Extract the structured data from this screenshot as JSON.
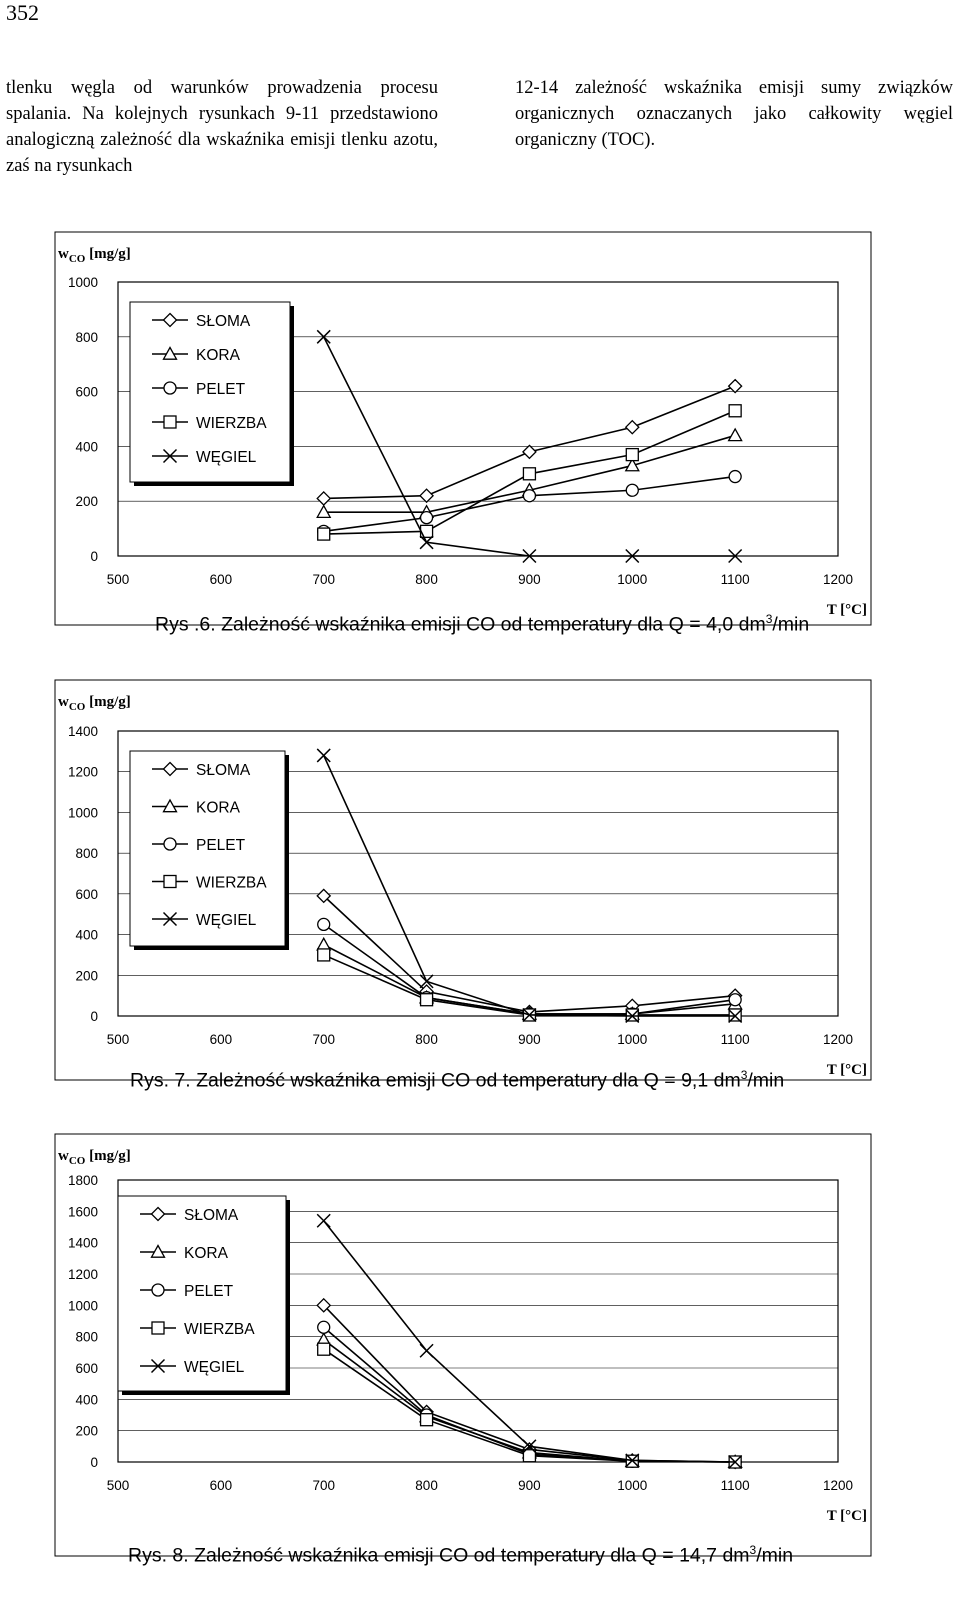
{
  "page": {
    "number": "352",
    "left_column_text": "tlenku węgla od warunków prowadzenia procesu spalania. Na kolejnych rysunkach 9-11 przedstawiono analogiczną zależność dla wskaźnika emisji tlenku azotu, zaś na rysunkach",
    "right_column_text": "12-14 zależność wskaźnika emisji sumy związków organicznych oznaczanych jako całkowity węgiel organiczny (TOC)."
  },
  "chart_data": [
    {
      "type": "line",
      "caption": "Rys .6. Zależność wskaźnika emisji CO od temperatury dla Q = 4,0 dm³/min",
      "ylabel": "w CO [mg/g]",
      "xlabel": "T [°C]",
      "xlim": [
        500,
        1200
      ],
      "ylim": [
        0,
        1000
      ],
      "xticks": [
        "500",
        "600",
        "700",
        "800",
        "900",
        "1000",
        "1100",
        "1200"
      ],
      "yticks": [
        "0",
        "200",
        "400",
        "600",
        "800",
        "1000"
      ],
      "legend_position": "top-left",
      "series": [
        {
          "name": "SŁOMA",
          "marker": "diamond",
          "x": [
            700,
            800,
            900,
            1000,
            1100
          ],
          "values": [
            210,
            220,
            380,
            470,
            620
          ]
        },
        {
          "name": "KORA",
          "marker": "triangle",
          "x": [
            700,
            800,
            900,
            1000,
            1100
          ],
          "values": [
            160,
            160,
            240,
            330,
            440
          ]
        },
        {
          "name": "PELET",
          "marker": "circle",
          "x": [
            700,
            800,
            900,
            1000,
            1100
          ],
          "values": [
            90,
            140,
            220,
            240,
            290
          ]
        },
        {
          "name": "WIERZBA",
          "marker": "square",
          "x": [
            700,
            800,
            900,
            1000,
            1100
          ],
          "values": [
            80,
            90,
            300,
            370,
            530
          ]
        },
        {
          "name": "WĘGIEL",
          "marker": "cross",
          "x": [
            700,
            800,
            900,
            1000,
            1100
          ],
          "values": [
            800,
            50,
            0,
            0,
            0
          ]
        }
      ]
    },
    {
      "type": "line",
      "caption": "Rys. 7. Zależność wskaźnika emisji CO od temperatury dla Q = 9,1 dm³/min",
      "ylabel": "w CO [mg/g]",
      "xlabel": "T [°C]",
      "xlim": [
        500,
        1200
      ],
      "ylim": [
        0,
        1400
      ],
      "xticks": [
        "500",
        "600",
        "700",
        "800",
        "900",
        "1000",
        "1100",
        "1200"
      ],
      "yticks": [
        "0",
        "200",
        "400",
        "600",
        "800",
        "1000",
        "1200",
        "1400"
      ],
      "legend_position": "top-left",
      "series": [
        {
          "name": "SŁOMA",
          "marker": "diamond",
          "x": [
            700,
            800,
            900,
            1000,
            1100
          ],
          "values": [
            590,
            120,
            20,
            50,
            100
          ]
        },
        {
          "name": "KORA",
          "marker": "triangle",
          "x": [
            700,
            800,
            900,
            1000,
            1100
          ],
          "values": [
            350,
            90,
            10,
            10,
            60
          ]
        },
        {
          "name": "PELET",
          "marker": "circle",
          "x": [
            700,
            800,
            900,
            1000,
            1100
          ],
          "values": [
            450,
            90,
            10,
            10,
            80
          ]
        },
        {
          "name": "WIERZBA",
          "marker": "square",
          "x": [
            700,
            800,
            900,
            1000,
            1100
          ],
          "values": [
            300,
            80,
            5,
            5,
            5
          ]
        },
        {
          "name": "WĘGIEL",
          "marker": "cross",
          "x": [
            700,
            800,
            900,
            1000,
            1100
          ],
          "values": [
            1280,
            170,
            5,
            0,
            0
          ]
        }
      ]
    },
    {
      "type": "line",
      "caption": "Rys. 8. Zależność wskaźnika emisji CO od temperatury dla Q = 14,7 dm³/min",
      "ylabel": "w CO [mg/g]",
      "xlabel": "T [°C]",
      "xlim": [
        500,
        1200
      ],
      "ylim": [
        0,
        1800
      ],
      "xticks": [
        "500",
        "600",
        "700",
        "800",
        "900",
        "1000",
        "1100",
        "1200"
      ],
      "yticks": [
        "0",
        "200",
        "400",
        "600",
        "800",
        "1000",
        "1200",
        "1400",
        "1600",
        "1800"
      ],
      "legend_position": "top-left",
      "series": [
        {
          "name": "SŁOMA",
          "marker": "diamond",
          "x": [
            700,
            800,
            900,
            1000,
            1100
          ],
          "values": [
            1000,
            320,
            80,
            10,
            0
          ]
        },
        {
          "name": "KORA",
          "marker": "triangle",
          "x": [
            700,
            800,
            900,
            1000,
            1100
          ],
          "values": [
            780,
            290,
            60,
            5,
            0
          ]
        },
        {
          "name": "PELET",
          "marker": "circle",
          "x": [
            700,
            800,
            900,
            1000,
            1100
          ],
          "values": [
            860,
            300,
            50,
            5,
            0
          ]
        },
        {
          "name": "WIERZBA",
          "marker": "square",
          "x": [
            700,
            800,
            900,
            1000,
            1100
          ],
          "values": [
            720,
            270,
            40,
            5,
            0
          ]
        },
        {
          "name": "WĘGIEL",
          "marker": "cross",
          "x": [
            700,
            800,
            900,
            1000,
            1100
          ],
          "values": [
            1540,
            710,
            100,
            10,
            0
          ]
        }
      ]
    }
  ]
}
